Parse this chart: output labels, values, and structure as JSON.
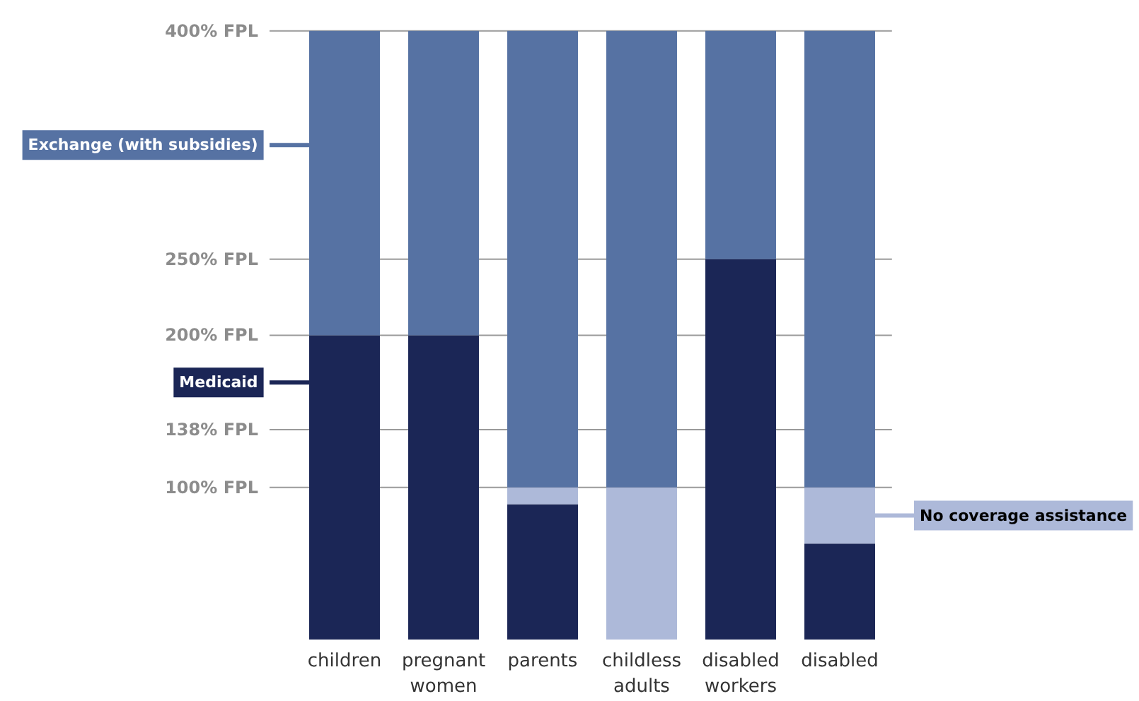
{
  "chart_data": {
    "type": "bar",
    "stacked": true,
    "categories": [
      "children",
      "pregnant women",
      "parents",
      "childless adults",
      "disabled workers",
      "disabled"
    ],
    "series": [
      {
        "name": "Medicaid",
        "color": "#1b2656",
        "values": [
          200,
          200,
          89,
          0,
          250,
          63
        ]
      },
      {
        "name": "No coverage assistance",
        "color": "#adb9d9",
        "values": [
          0,
          0,
          11,
          100,
          0,
          37
        ]
      },
      {
        "name": "Exchange (with subsidies)",
        "color": "#5672a3",
        "values": [
          200,
          200,
          300,
          300,
          150,
          300
        ]
      }
    ],
    "ylim": [
      0,
      400
    ],
    "yticks": [
      {
        "value": 100,
        "label": "100% FPL"
      },
      {
        "value": 138,
        "label": "138% FPL"
      },
      {
        "value": 200,
        "label": "200% FPL"
      },
      {
        "value": 250,
        "label": "250% FPL"
      },
      {
        "value": 400,
        "label": "400% FPL"
      }
    ],
    "grid": "y",
    "legend": "left"
  }
}
